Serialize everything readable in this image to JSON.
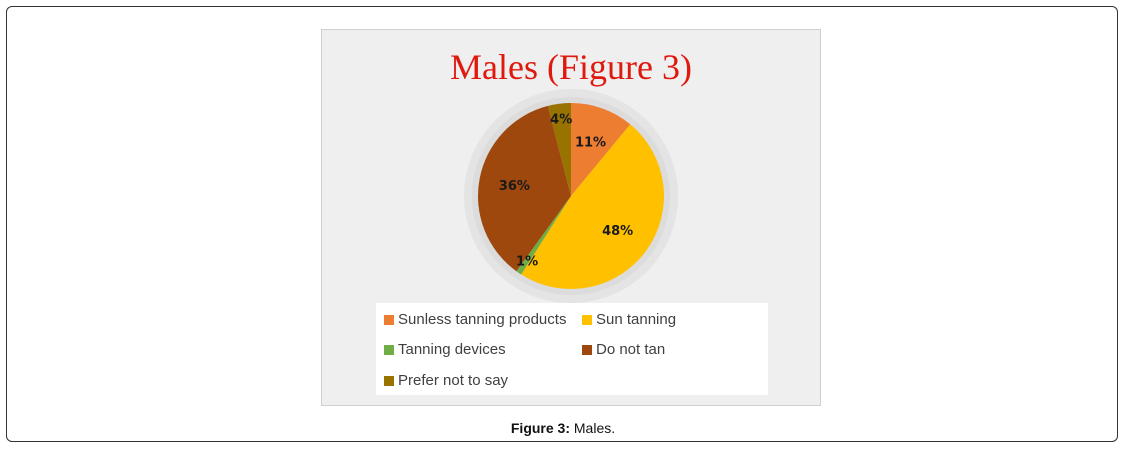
{
  "chart_data": {
    "type": "pie",
    "title": "Males (Figure 3)",
    "slices": [
      {
        "label": "Sunless tanning products",
        "value": 11,
        "display": "11%",
        "color": "#ED7D31"
      },
      {
        "label": "Sun tanning",
        "value": 48,
        "display": "48%",
        "color": "#FFC000"
      },
      {
        "label": "Tanning devices",
        "value": 1,
        "display": "1%",
        "color": "#70AD47"
      },
      {
        "label": "Do not tan",
        "value": 36,
        "display": "36%",
        "color": "#9E480E"
      },
      {
        "label": "Prefer not to say",
        "value": 4,
        "display": "4%",
        "color": "#997300"
      }
    ],
    "legend_position": "bottom"
  },
  "caption": {
    "label": "Figure 3:",
    "text": "Males."
  }
}
